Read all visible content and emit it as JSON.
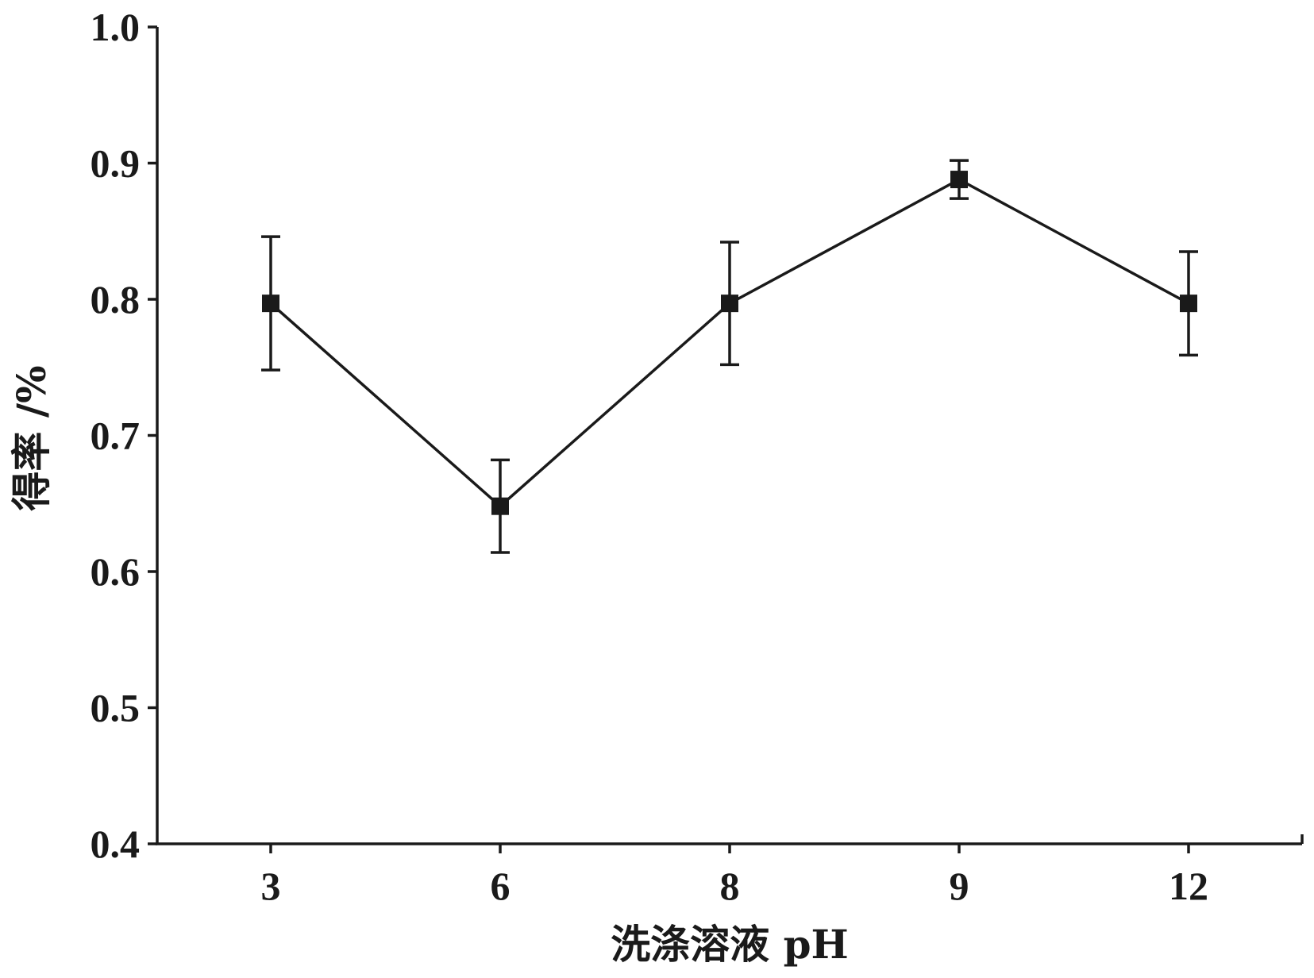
{
  "chart_data": {
    "type": "line",
    "categories": [
      "3",
      "6",
      "8",
      "9",
      "12"
    ],
    "series": [
      {
        "values": [
          0.797,
          0.648,
          0.797,
          0.888,
          0.797
        ],
        "error": [
          0.049,
          0.034,
          0.045,
          0.014,
          0.038
        ],
        "marker": "square"
      }
    ],
    "xlabel": "洗涤溶液 pH",
    "ylabel": "得率 /%",
    "ylim": [
      0.4,
      1.0
    ],
    "yticks": [
      "0.4",
      "0.5",
      "0.6",
      "0.7",
      "0.8",
      "0.9",
      "1.0"
    ],
    "grid": false,
    "colors": {
      "ink": "#1a1a1a"
    }
  }
}
